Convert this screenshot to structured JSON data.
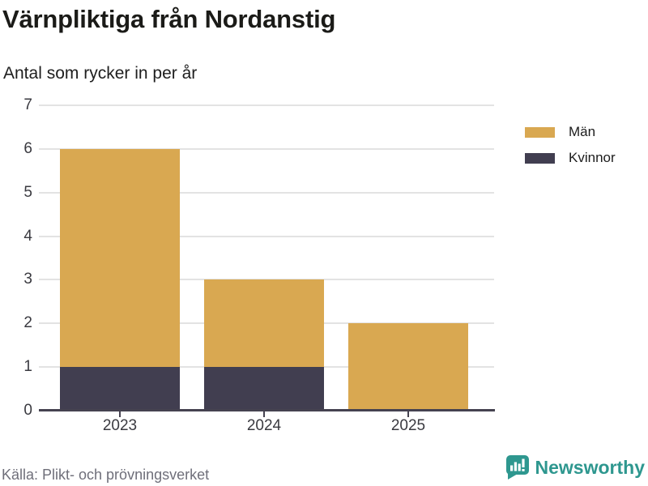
{
  "header": {
    "title": "Värnpliktiga från Nordanstig",
    "subtitle": "Antal som rycker in per år"
  },
  "chart_data": {
    "type": "bar",
    "stacked": true,
    "title": "Värnpliktiga från Nordanstig",
    "subtitle": "Antal som rycker in per år",
    "categories": [
      "2023",
      "2024",
      "2025"
    ],
    "series": [
      {
        "name": "Kvinnor",
        "color": "#413e50",
        "values": [
          1,
          1,
          0
        ]
      },
      {
        "name": "Män",
        "color": "#d9a851",
        "values": [
          5,
          2,
          2
        ]
      }
    ],
    "stack_totals": [
      6,
      3,
      2
    ],
    "xlabel": "",
    "ylabel": "",
    "ylim": [
      0,
      7
    ],
    "yticks": [
      0,
      1,
      2,
      3,
      4,
      5,
      6,
      7
    ],
    "grid": true,
    "legend_position": "top-right"
  },
  "legend": {
    "items": [
      {
        "label": "Män",
        "color": "#d9a851"
      },
      {
        "label": "Kvinnor",
        "color": "#413e50"
      }
    ]
  },
  "footer": {
    "source": "Källa: Plikt- och prövningsverket",
    "brand": "Newsworthy"
  },
  "colors": {
    "men": "#d9a851",
    "women": "#413e50",
    "grid": "#e3e3e3",
    "axis": "#454250",
    "brand_teal": "#2e978f"
  }
}
